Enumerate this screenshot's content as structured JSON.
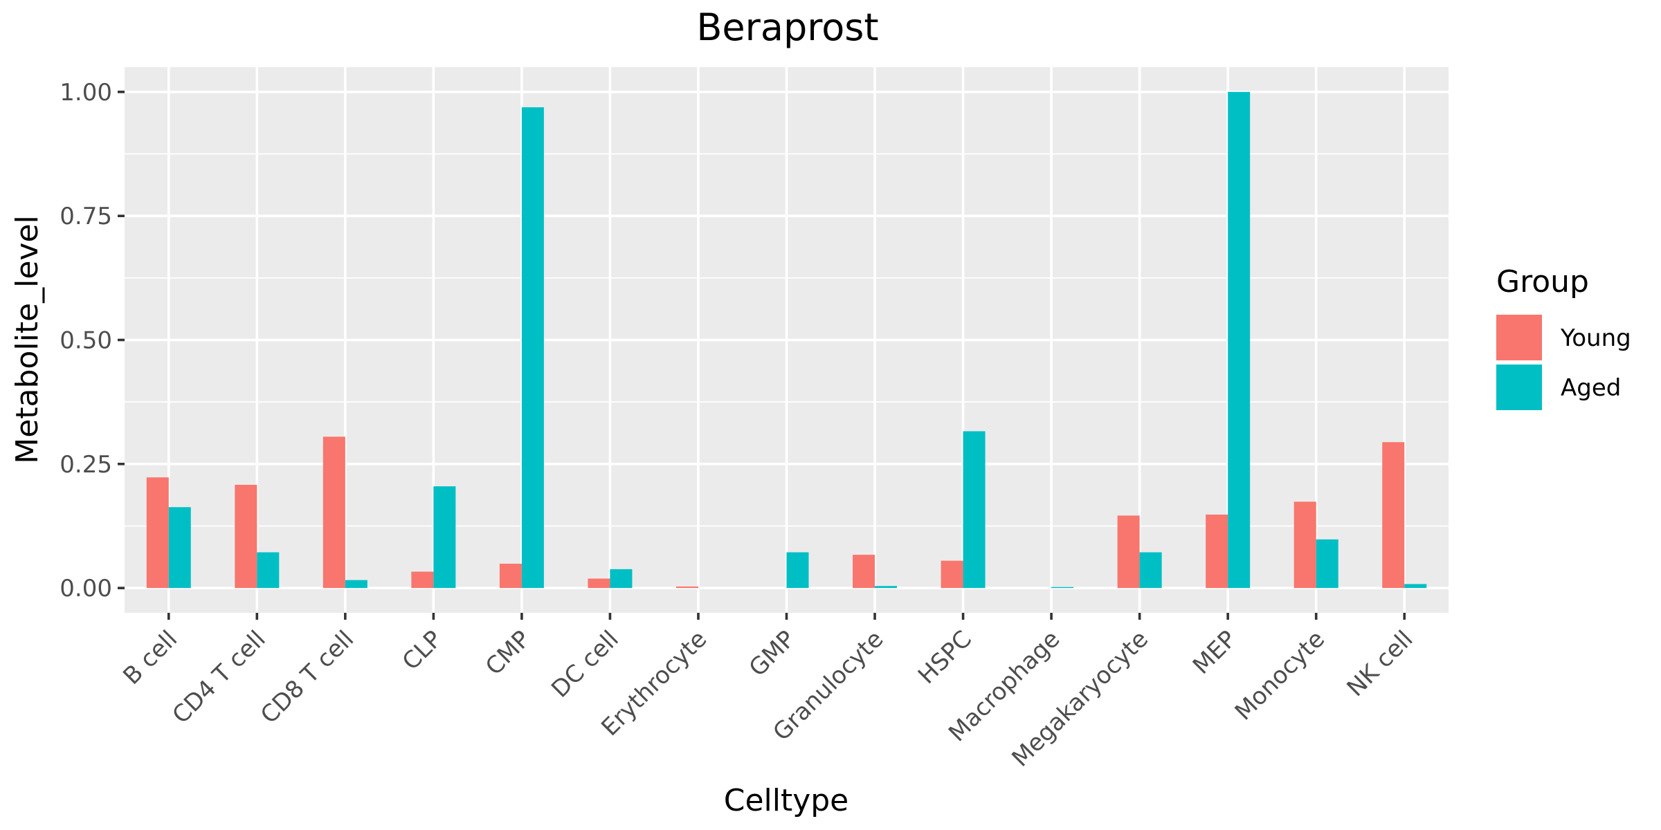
{
  "chart_data": {
    "type": "bar",
    "title": "Beraprost",
    "xlabel": "Celltype",
    "ylabel": "Metabolite_level",
    "ylim": [
      -0.05,
      1.05
    ],
    "yticks": [
      0.0,
      0.25,
      0.5,
      0.75,
      1.0
    ],
    "ytick_labels": [
      "0.00",
      "0.25",
      "0.50",
      "0.75",
      "1.00"
    ],
    "grid": true,
    "categories": [
      "B cell",
      "CD4 T cell",
      "CD8 T cell",
      "CLP",
      "CMP",
      "DC cell",
      "Erythrocyte",
      "GMP",
      "Granulocyte",
      "HSPC",
      "Macrophage",
      "Megakaryocyte",
      "MEP",
      "Monocyte",
      "NK cell"
    ],
    "series": [
      {
        "name": "Young",
        "color": "#F8766D",
        "values": [
          0.223,
          0.208,
          0.305,
          0.033,
          0.049,
          0.019,
          0.003,
          0.0,
          0.067,
          0.055,
          0.0,
          0.146,
          0.148,
          0.174,
          0.294
        ]
      },
      {
        "name": "Aged",
        "color": "#00BFC4",
        "values": [
          0.163,
          0.072,
          0.016,
          0.205,
          0.969,
          0.038,
          0.0,
          0.072,
          0.004,
          0.316,
          0.002,
          0.072,
          1.0,
          0.098,
          0.008
        ]
      }
    ],
    "legend": {
      "title": "Group",
      "position": "right"
    }
  },
  "colors": {
    "panel": "#EBEBEB",
    "grid": "#FFFFFF",
    "tick": "#333333",
    "tick_text": "#4D4D4D"
  }
}
